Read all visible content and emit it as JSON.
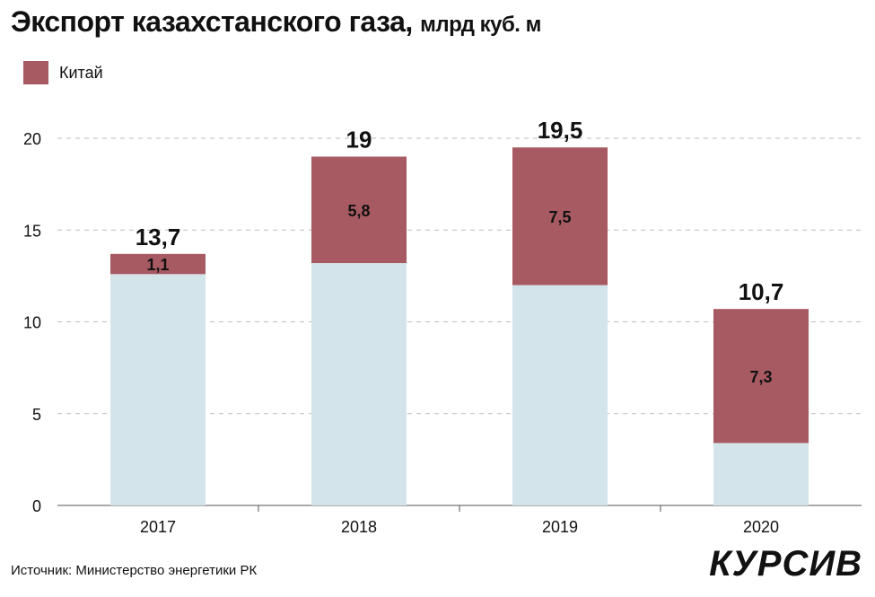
{
  "title": "Экспорт казахстанского газа,",
  "title_unit": "млрд куб. м",
  "source": "Источник: Министерство энергетики РК",
  "logo_text": "КУРСИВ",
  "colors": {
    "china": "#a85a62",
    "other": "#d3e5ea",
    "grid": "#bbbbbb",
    "text": "#111111"
  },
  "chart_data": {
    "type": "bar",
    "stacked": true,
    "categories": [
      "2017",
      "2018",
      "2019",
      "2020"
    ],
    "totals": [
      "13,7",
      "19",
      "19,5",
      "10,7"
    ],
    "total_values": [
      13.7,
      19,
      19.5,
      10.7
    ],
    "series": [
      {
        "values": [
          12.6,
          13.2,
          12.0,
          3.4
        ]
      },
      {
        "name": "Китай",
        "values": [
          1.1,
          5.8,
          7.5,
          7.3
        ],
        "labels": [
          "1,1",
          "5,8",
          "7,5",
          "7,3"
        ]
      }
    ],
    "yticks": [
      0,
      5,
      10,
      15,
      20
    ],
    "ylim": [
      0,
      20.2
    ],
    "grid": true,
    "legend": "top-left"
  }
}
